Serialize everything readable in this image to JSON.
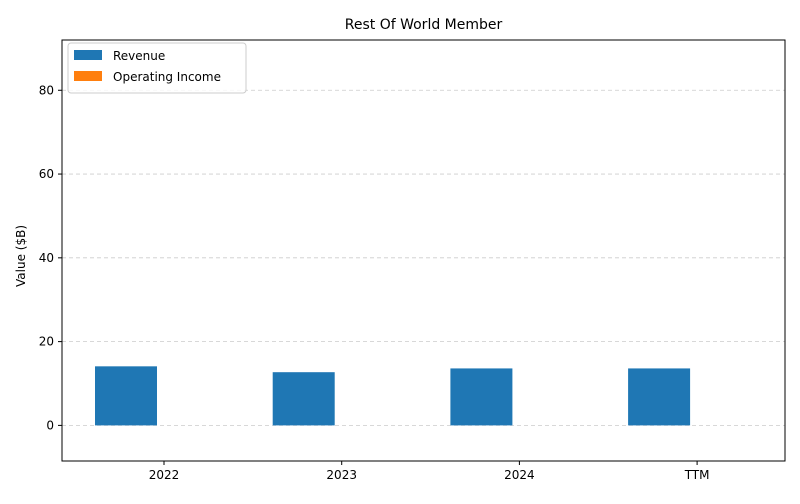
{
  "chart_data": {
    "type": "bar",
    "title": "Rest Of World Member",
    "xlabel": "",
    "ylabel": "Value ($B)",
    "categories": [
      "2022",
      "2023",
      "2024",
      "TTM"
    ],
    "series": [
      {
        "name": "Revenue",
        "color": "#1f77b4",
        "values": [
          14.1,
          12.7,
          13.6,
          13.6
        ]
      },
      {
        "name": "Operating Income",
        "color": "#ff7f0e",
        "values": [
          0,
          0,
          0,
          0
        ]
      }
    ],
    "ylim": [
      -8.5,
      92
    ],
    "yticks": [
      0,
      20,
      40,
      60,
      80
    ],
    "grid": "y-dashed",
    "legend_position": "top-left"
  }
}
